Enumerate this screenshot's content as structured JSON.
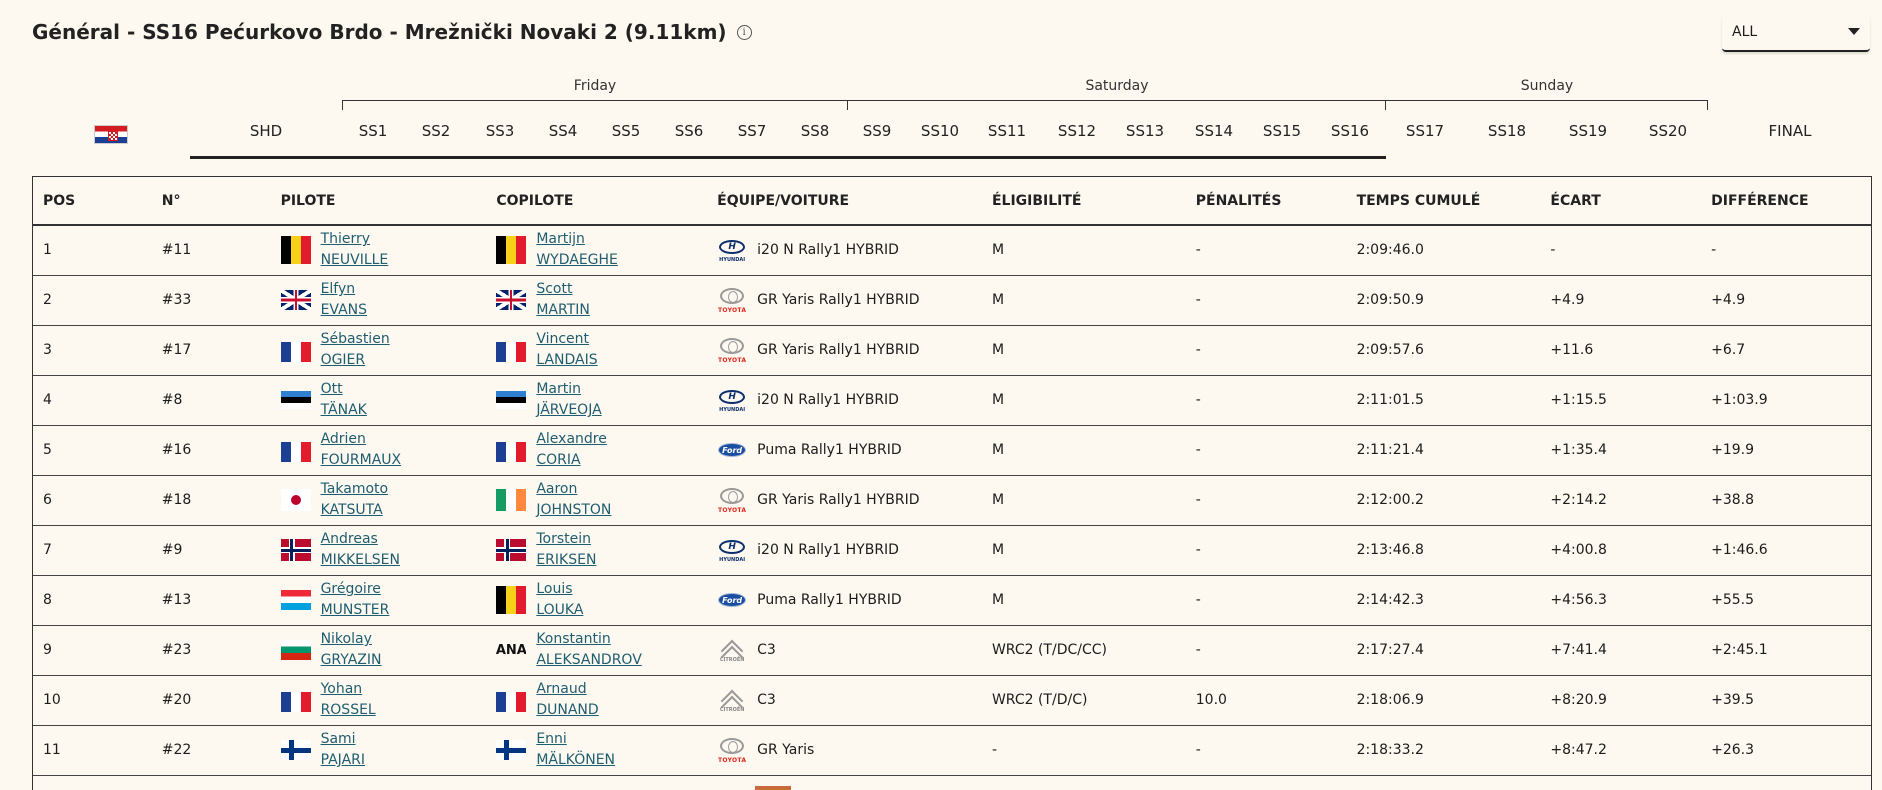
{
  "header": {
    "title": "Général - SS16 Pećurkovo Brdo - Mrežnički Novaki 2 (9.11km)",
    "info_glyph": "i",
    "filter_value": "ALL"
  },
  "days": [
    {
      "label": "Friday",
      "id": "friday"
    },
    {
      "label": "Saturday",
      "id": "saturday"
    },
    {
      "label": "Sunday",
      "id": "sunday"
    }
  ],
  "tabs": [
    {
      "id": "shd",
      "label": "SHD"
    },
    {
      "id": "ss1",
      "label": "SS1"
    },
    {
      "id": "ss2",
      "label": "SS2"
    },
    {
      "id": "ss3",
      "label": "SS3"
    },
    {
      "id": "ss4",
      "label": "SS4"
    },
    {
      "id": "ss5",
      "label": "SS5"
    },
    {
      "id": "ss6",
      "label": "SS6"
    },
    {
      "id": "ss7",
      "label": "SS7"
    },
    {
      "id": "ss8",
      "label": "SS8"
    },
    {
      "id": "ss9",
      "label": "SS9"
    },
    {
      "id": "ss10",
      "label": "SS10"
    },
    {
      "id": "ss11",
      "label": "SS11"
    },
    {
      "id": "ss12",
      "label": "SS12"
    },
    {
      "id": "ss13",
      "label": "SS13"
    },
    {
      "id": "ss14",
      "label": "SS14"
    },
    {
      "id": "ss15",
      "label": "SS15"
    },
    {
      "id": "ss16",
      "label": "SS16"
    },
    {
      "id": "ss17",
      "label": "SS17"
    },
    {
      "id": "ss18",
      "label": "SS18"
    },
    {
      "id": "ss19",
      "label": "SS19"
    },
    {
      "id": "ss20",
      "label": "SS20"
    },
    {
      "id": "final",
      "label": "FINAL"
    }
  ],
  "table": {
    "columns": [
      "POS",
      "N°",
      "PILOTE",
      "COPILOTE",
      "ÉQUIPE/VOITURE",
      "ÉLIGIBILITÉ",
      "PÉNALITÉS",
      "TEMPS CUMULÉ",
      "ÉCART",
      "DIFFÉRENCE"
    ],
    "rows": [
      {
        "pos": "1",
        "num": "#11",
        "driver_first": "Thierry",
        "driver_last": "NEUVILLE",
        "driver_flag": "be",
        "codriver_first": "Martijn",
        "codriver_last": "WYDAEGHE",
        "codriver_flag": "be",
        "brand": "hyundai",
        "car": "i20 N Rally1 HYBRID",
        "elig": "M",
        "pen": "-",
        "time": "2:09:46.0",
        "gap": "-",
        "diff": "-"
      },
      {
        "pos": "2",
        "num": "#33",
        "driver_first": "Elfyn",
        "driver_last": "EVANS",
        "driver_flag": "gb",
        "codriver_first": "Scott",
        "codriver_last": "MARTIN",
        "codriver_flag": "gb",
        "brand": "toyota",
        "car": "GR Yaris Rally1 HYBRID",
        "elig": "M",
        "pen": "-",
        "time": "2:09:50.9",
        "gap": "+4.9",
        "diff": "+4.9"
      },
      {
        "pos": "3",
        "num": "#17",
        "driver_first": "Sébastien",
        "driver_last": "OGIER",
        "driver_flag": "fr",
        "codriver_first": "Vincent",
        "codriver_last": "LANDAIS",
        "codriver_flag": "fr",
        "brand": "toyota",
        "car": "GR Yaris Rally1 HYBRID",
        "elig": "M",
        "pen": "-",
        "time": "2:09:57.6",
        "gap": "+11.6",
        "diff": "+6.7"
      },
      {
        "pos": "4",
        "num": "#8",
        "driver_first": "Ott",
        "driver_last": "TÄNAK",
        "driver_flag": "ee",
        "codriver_first": "Martin",
        "codriver_last": "JÄRVEOJA",
        "codriver_flag": "ee",
        "brand": "hyundai",
        "car": "i20 N Rally1 HYBRID",
        "elig": "M",
        "pen": "-",
        "time": "2:11:01.5",
        "gap": "+1:15.5",
        "diff": "+1:03.9"
      },
      {
        "pos": "5",
        "num": "#16",
        "driver_first": "Adrien",
        "driver_last": "FOURMAUX",
        "driver_flag": "fr",
        "codriver_first": "Alexandre",
        "codriver_last": "CORIA",
        "codriver_flag": "fr",
        "brand": "ford",
        "car": "Puma Rally1 HYBRID",
        "elig": "M",
        "pen": "-",
        "time": "2:11:21.4",
        "gap": "+1:35.4",
        "diff": "+19.9"
      },
      {
        "pos": "6",
        "num": "#18",
        "driver_first": "Takamoto",
        "driver_last": "KATSUTA",
        "driver_flag": "jp",
        "codriver_first": "Aaron",
        "codriver_last": "JOHNSTON",
        "codriver_flag": "ie",
        "brand": "toyota",
        "car": "GR Yaris Rally1 HYBRID",
        "elig": "M",
        "pen": "-",
        "time": "2:12:00.2",
        "gap": "+2:14.2",
        "diff": "+38.8"
      },
      {
        "pos": "7",
        "num": "#9",
        "driver_first": "Andreas",
        "driver_last": "MIKKELSEN",
        "driver_flag": "no",
        "codriver_first": "Torstein",
        "codriver_last": "ERIKSEN",
        "codriver_flag": "no",
        "brand": "hyundai",
        "car": "i20 N Rally1 HYBRID",
        "elig": "M",
        "pen": "-",
        "time": "2:13:46.8",
        "gap": "+4:00.8",
        "diff": "+1:46.6"
      },
      {
        "pos": "8",
        "num": "#13",
        "driver_first": "Grégoire",
        "driver_last": "MUNSTER",
        "driver_flag": "lu",
        "codriver_first": "Louis",
        "codriver_last": "LOUKA",
        "codriver_flag": "be",
        "brand": "ford",
        "car": "Puma Rally1 HYBRID",
        "elig": "M",
        "pen": "-",
        "time": "2:14:42.3",
        "gap": "+4:56.3",
        "diff": "+55.5"
      },
      {
        "pos": "9",
        "num": "#23",
        "driver_first": "Nikolay",
        "driver_last": "GRYAZIN",
        "driver_flag": "bg",
        "codriver_first": "Konstantin",
        "codriver_last": "ALEKSANDROV",
        "codriver_flag": "ana",
        "codriver_flag_text": "ANA",
        "brand": "citroen",
        "car": "C3",
        "elig": "WRC2 (T/DC/CC)",
        "pen": "-",
        "time": "2:17:27.4",
        "gap": "+7:41.4",
        "diff": "+2:45.1"
      },
      {
        "pos": "10",
        "num": "#20",
        "driver_first": "Yohan",
        "driver_last": "ROSSEL",
        "driver_flag": "fr",
        "codriver_first": "Arnaud",
        "codriver_last": "DUNAND",
        "codriver_flag": "fr",
        "brand": "citroen",
        "car": "C3",
        "elig": "WRC2 (T/D/C)",
        "pen": "10.0",
        "time": "2:18:06.9",
        "gap": "+8:20.9",
        "diff": "+39.5"
      },
      {
        "pos": "11",
        "num": "#22",
        "driver_first": "Sami",
        "driver_last": "PAJARI",
        "driver_flag": "fi",
        "codriver_first": "Enni",
        "codriver_last": "MÄLKÖNEN",
        "codriver_flag": "fi",
        "brand": "toyota",
        "car": "GR Yaris",
        "elig": "-",
        "pen": "-",
        "time": "2:18:33.2",
        "gap": "+8:47.2",
        "diff": "+26.3"
      }
    ]
  },
  "brand_logo_text": {
    "hyundai": {
      "mark": "H",
      "word": "HYUNDAI"
    },
    "toyota": {
      "word": "TOYOTA"
    },
    "ford": {
      "mark": "Ford"
    },
    "citroen": {
      "word": "CITROËN"
    }
  }
}
